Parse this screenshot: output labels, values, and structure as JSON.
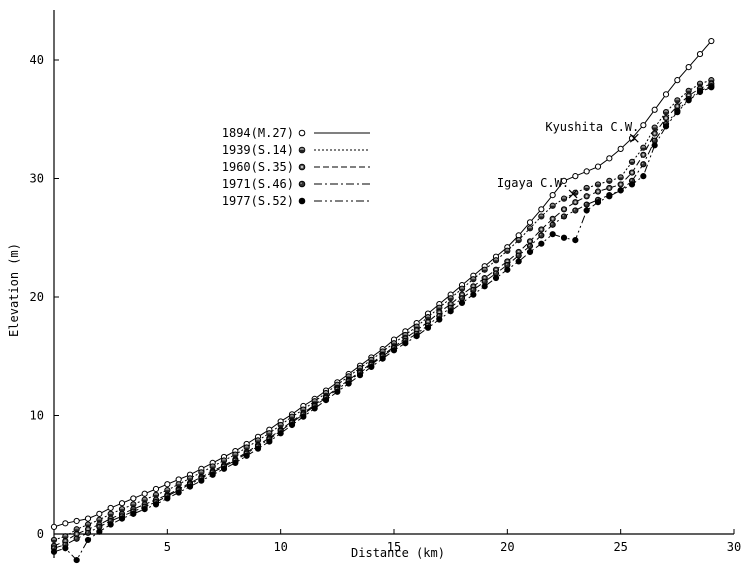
{
  "chart_data": {
    "type": "line",
    "title": "",
    "xlabel": "Distance (km)",
    "ylabel": "Elevation (m)",
    "xlim": [
      0,
      30
    ],
    "ylim": [
      -3,
      45
    ],
    "x_ticks": [
      5,
      10,
      15,
      20,
      25,
      30
    ],
    "y_ticks": [
      0,
      10,
      20,
      30,
      40
    ],
    "grid": false,
    "legend_position": "upper-left-inside",
    "series": [
      {
        "name": "1894(M.27)",
        "marker": "open-circle",
        "line": "solid",
        "x": [
          0,
          0.5,
          1,
          1.5,
          2,
          2.5,
          3,
          3.5,
          4,
          4.5,
          5,
          5.5,
          6,
          6.5,
          7,
          7.5,
          8,
          8.5,
          9,
          9.5,
          10,
          10.5,
          11,
          11.5,
          12,
          12.5,
          13,
          13.5,
          14,
          14.5,
          15,
          15.5,
          16,
          16.5,
          17,
          17.5,
          18,
          18.5,
          19,
          19.5,
          20,
          20.5,
          21,
          21.5,
          22,
          22.5,
          23,
          23.5,
          24,
          24.5,
          25,
          25.5,
          26,
          26.5,
          27,
          27.5,
          28,
          28.5,
          29
        ],
        "y": [
          0.6,
          0.9,
          1.1,
          1.3,
          1.7,
          2.2,
          2.6,
          3.0,
          3.4,
          3.8,
          4.2,
          4.6,
          5.0,
          5.5,
          6.0,
          6.5,
          7.0,
          7.6,
          8.2,
          8.8,
          9.5,
          10.1,
          10.8,
          11.4,
          12.1,
          12.8,
          13.5,
          14.2,
          14.9,
          15.6,
          16.4,
          17.1,
          17.8,
          18.6,
          19.4,
          20.2,
          21.0,
          21.8,
          22.6,
          23.4,
          24.2,
          25.2,
          26.3,
          27.4,
          28.6,
          29.8,
          30.2,
          30.6,
          31.0,
          31.7,
          32.5,
          33.4,
          34.5,
          35.8,
          37.1,
          38.3,
          39.4,
          40.5,
          41.6
        ]
      },
      {
        "name": "1939(S.14)",
        "marker": "half-filled-circle",
        "line": "dotted",
        "x": [
          0,
          0.5,
          1,
          1.5,
          2,
          2.5,
          3,
          3.5,
          4,
          4.5,
          5,
          5.5,
          6,
          6.5,
          7,
          7.5,
          8,
          8.5,
          9,
          9.5,
          10,
          10.5,
          11,
          11.5,
          12,
          12.5,
          13,
          13.5,
          14,
          14.5,
          15,
          15.5,
          16,
          16.5,
          17,
          17.5,
          18,
          18.5,
          19,
          19.5,
          20,
          20.5,
          21,
          21.5,
          22,
          22.5,
          23,
          23.5,
          24,
          24.5,
          25,
          25.5,
          26,
          26.5,
          27,
          27.5,
          28,
          28.5,
          29
        ],
        "y": [
          -0.5,
          -0.2,
          0.4,
          0.8,
          1.2,
          1.7,
          2.1,
          2.5,
          2.9,
          3.3,
          3.7,
          4.2,
          4.7,
          5.2,
          5.7,
          6.2,
          6.7,
          7.3,
          7.9,
          8.5,
          9.2,
          9.9,
          10.5,
          11.2,
          11.9,
          12.6,
          13.3,
          14.0,
          14.7,
          15.4,
          16.1,
          16.8,
          17.5,
          18.3,
          19.1,
          19.9,
          20.7,
          21.5,
          22.3,
          23.1,
          23.9,
          24.8,
          25.8,
          26.8,
          27.7,
          28.3,
          28.8,
          29.2,
          29.5,
          29.8,
          30.1,
          31.4,
          32.6,
          34.3,
          35.6,
          36.6,
          37.4,
          38.0,
          38.3
        ]
      },
      {
        "name": "1960(S.35)",
        "marker": "dotted-circle",
        "line": "dashed",
        "x": [
          0,
          0.5,
          1,
          1.5,
          2,
          2.5,
          3,
          3.5,
          4,
          4.5,
          5,
          5.5,
          6,
          6.5,
          7,
          7.5,
          8,
          8.5,
          9,
          9.5,
          10,
          10.5,
          11,
          11.5,
          12,
          12.5,
          13,
          13.5,
          14,
          14.5,
          15,
          15.5,
          16,
          16.5,
          17,
          17.5,
          18,
          18.5,
          19,
          19.5,
          20,
          20.5,
          21,
          21.5,
          22,
          22.5,
          23,
          23.5,
          24,
          24.5,
          25,
          25.5,
          26,
          26.5,
          27,
          27.5,
          28,
          28.5,
          29
        ],
        "y": [
          -1.0,
          -0.6,
          0.0,
          0.4,
          0.8,
          1.3,
          1.7,
          2.1,
          2.5,
          2.9,
          3.3,
          3.8,
          4.3,
          4.8,
          5.3,
          5.8,
          6.3,
          6.9,
          7.5,
          8.1,
          8.8,
          9.5,
          10.2,
          10.9,
          11.6,
          12.3,
          13.0,
          13.7,
          14.4,
          15.1,
          15.8,
          16.5,
          17.2,
          17.9,
          18.7,
          19.4,
          20.2,
          20.9,
          21.6,
          22.3,
          23.0,
          23.8,
          24.7,
          25.7,
          26.6,
          27.4,
          28.0,
          28.5,
          28.9,
          29.2,
          29.5,
          30.5,
          32.0,
          33.8,
          35.1,
          36.1,
          37.0,
          37.6,
          38.0
        ]
      },
      {
        "name": "1971(S.46)",
        "marker": "dark-circle",
        "line": "dash-dot",
        "x": [
          0,
          0.5,
          1,
          1.5,
          2,
          2.5,
          3,
          3.5,
          4,
          4.5,
          5,
          5.5,
          6,
          6.5,
          7,
          7.5,
          8,
          8.5,
          9,
          9.5,
          10,
          10.5,
          11,
          11.5,
          12,
          12.5,
          13,
          13.5,
          14,
          14.5,
          15,
          15.5,
          16,
          16.5,
          17,
          17.5,
          18,
          18.5,
          19,
          19.5,
          20,
          20.5,
          21,
          21.5,
          22,
          22.5,
          23,
          23.5,
          24,
          24.5,
          25,
          25.5,
          26,
          26.5,
          27,
          27.5,
          28,
          28.5,
          29
        ],
        "y": [
          -1.2,
          -0.9,
          -0.4,
          0.1,
          0.6,
          1.1,
          1.5,
          1.9,
          2.3,
          2.7,
          3.2,
          3.7,
          4.2,
          4.7,
          5.2,
          5.7,
          6.2,
          6.8,
          7.4,
          8.0,
          8.7,
          9.4,
          10.1,
          10.8,
          11.5,
          12.2,
          12.9,
          13.6,
          14.3,
          15.0,
          15.7,
          16.3,
          16.9,
          17.6,
          18.4,
          19.1,
          19.9,
          20.6,
          21.3,
          22.0,
          22.7,
          23.5,
          24.3,
          25.2,
          26.1,
          26.8,
          27.3,
          27.8,
          28.2,
          28.6,
          29.0,
          29.8,
          31.2,
          33.2,
          34.6,
          35.7,
          36.7,
          37.4,
          37.8
        ]
      },
      {
        "name": "1977(S.52)",
        "marker": "filled-circle",
        "line": "dash-dot-dot",
        "x": [
          0,
          0.5,
          1,
          1.5,
          2,
          2.5,
          3,
          3.5,
          4,
          4.5,
          5,
          5.5,
          6,
          6.5,
          7,
          7.5,
          8,
          8.5,
          9,
          9.5,
          10,
          10.5,
          11,
          11.5,
          12,
          12.5,
          13,
          13.5,
          14,
          14.5,
          15,
          15.5,
          16,
          16.5,
          17,
          17.5,
          18,
          18.5,
          19,
          19.5,
          20,
          20.5,
          21,
          21.5,
          22,
          22.5,
          23,
          23.5,
          24,
          24.5,
          25,
          25.5,
          26,
          26.5,
          27,
          27.5,
          28,
          28.5,
          29
        ],
        "y": [
          -1.5,
          -1.2,
          -2.2,
          -0.5,
          0.2,
          0.8,
          1.3,
          1.7,
          2.1,
          2.5,
          3.0,
          3.5,
          4.0,
          4.5,
          5.0,
          5.5,
          6.0,
          6.6,
          7.2,
          7.8,
          8.5,
          9.2,
          9.9,
          10.6,
          11.3,
          12.0,
          12.7,
          13.4,
          14.1,
          14.8,
          15.5,
          16.1,
          16.7,
          17.4,
          18.1,
          18.8,
          19.5,
          20.2,
          20.9,
          21.6,
          22.3,
          23.0,
          23.8,
          24.5,
          25.3,
          25.0,
          24.8,
          27.3,
          28.0,
          28.5,
          29.0,
          29.5,
          30.2,
          32.8,
          34.4,
          35.6,
          36.6,
          37.3,
          37.7
        ]
      }
    ],
    "annotations": [
      {
        "label": "Kyushita C.W.",
        "x": 25.6,
        "y": 33.4
      },
      {
        "label": "Igaya C.W.",
        "x": 22.9,
        "y": 28.7
      }
    ]
  }
}
